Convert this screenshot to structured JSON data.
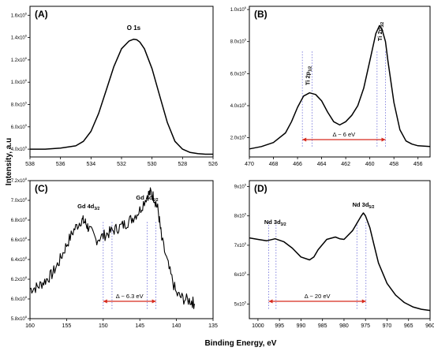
{
  "figure": {
    "ylabel": "Intensity, a.u",
    "xlabel": "Binding Energy, eV"
  },
  "chart_data": [
    {
      "type": "line",
      "panel_label": "(A)",
      "peak_label": "O 1s",
      "annotations": [],
      "xlim": [
        538,
        526
      ],
      "ylim": [
        330000,
        1680000
      ],
      "xticks": [
        538,
        536,
        534,
        532,
        530,
        528,
        526
      ],
      "yticks": [
        400000,
        600000,
        800000,
        1000000,
        1200000,
        1400000,
        1600000
      ],
      "ytick_labels": [
        {
          "m": "4.0x10",
          "e": "5"
        },
        {
          "m": "6.0x10",
          "e": "5"
        },
        {
          "m": "8.0x10",
          "e": "5"
        },
        {
          "m": "1.0x10",
          "e": "6"
        },
        {
          "m": "1.2x10",
          "e": "6"
        },
        {
          "m": "1.4x10",
          "e": "6"
        },
        {
          "m": "1.6x10",
          "e": "6"
        }
      ],
      "series": [
        {
          "x": [
            538.0,
            537.0,
            536.0,
            535.0,
            534.5,
            534.0,
            533.5,
            533.0,
            532.5,
            532.0,
            531.5,
            531.2,
            531.0,
            530.8,
            530.5,
            530.0,
            529.5,
            529.0,
            528.5,
            528.0,
            527.5,
            527.0,
            526.5,
            526.0
          ],
          "y": [
            400000,
            400000,
            410000,
            430000,
            470000,
            560000,
            720000,
            930000,
            1140000,
            1300000,
            1370000,
            1385000,
            1380000,
            1360000,
            1300000,
            1120000,
            880000,
            640000,
            470000,
            400000,
            370000,
            360000,
            355000,
            355000
          ]
        }
      ],
      "spans": []
    },
    {
      "type": "line",
      "panel_label": "(B)",
      "peak_label": "",
      "annotations": [
        {
          "main": "Ti 2p",
          "sub": "1/2",
          "x": 465.2
        },
        {
          "main": "Ti 2p",
          "sub": "3/2",
          "x": 459.2
        }
      ],
      "xlim": [
        470,
        455
      ],
      "ylim": [
        80000,
        1020000
      ],
      "xticks": [
        470,
        468,
        466,
        464,
        462,
        460,
        458,
        456
      ],
      "yticks": [
        200000,
        400000,
        600000,
        800000,
        1000000
      ],
      "ytick_labels": [
        {
          "m": "2.0x10",
          "e": "5"
        },
        {
          "m": "4.0x10",
          "e": "5"
        },
        {
          "m": "6.0x10",
          "e": "5"
        },
        {
          "m": "8.0x10",
          "e": "5"
        },
        {
          "m": "1.0x10",
          "e": "6"
        }
      ],
      "series": [
        {
          "x": [
            470.0,
            469.0,
            468.0,
            467.0,
            466.5,
            466.0,
            465.5,
            465.0,
            464.5,
            464.0,
            463.5,
            463.0,
            462.5,
            462.0,
            461.5,
            461.0,
            460.5,
            460.0,
            459.5,
            459.2,
            459.0,
            458.7,
            458.5,
            458.0,
            457.5,
            457.0,
            456.5,
            456.0,
            455.0
          ],
          "y": [
            130000,
            145000,
            170000,
            230000,
            300000,
            390000,
            460000,
            480000,
            470000,
            430000,
            360000,
            300000,
            280000,
            300000,
            340000,
            400000,
            510000,
            680000,
            850000,
            900000,
            880000,
            800000,
            680000,
            420000,
            250000,
            180000,
            160000,
            150000,
            145000
          ]
        }
      ],
      "spans": [
        {
          "from": 465.6,
          "to": 458.7,
          "label": "Δ ~ 6 eV",
          "lines": [
            465.6,
            464.8,
            459.4,
            458.7
          ]
        }
      ]
    },
    {
      "type": "line",
      "panel_label": "(C)",
      "peak_label": "",
      "annotations": [
        {
          "main": "Gd 4d",
          "sub": "3/2",
          "x": 152.0
        },
        {
          "main": "Gd 4d",
          "sub": "5/2",
          "x": 144.0
        }
      ],
      "xlim": [
        160,
        135
      ],
      "ylim": [
        580000000.0,
        720000000.0
      ],
      "xticks": [
        160,
        155,
        150,
        145,
        140,
        135
      ],
      "yticks": [
        580000000.0,
        600000000.0,
        620000000.0,
        640000000.0,
        660000000.0,
        680000000.0,
        700000000.0,
        720000000.0
      ],
      "ytick_labels": [
        {
          "m": "5.8x10",
          "e": "8"
        },
        {
          "m": "6.0x10",
          "e": "8"
        },
        {
          "m": "6.2x10",
          "e": "8"
        },
        {
          "m": "6.4x10",
          "e": "8"
        },
        {
          "m": "6.6x10",
          "e": "8"
        },
        {
          "m": "6.8x10",
          "e": "8"
        },
        {
          "m": "7.0x10",
          "e": "8"
        },
        {
          "m": "7.2x10",
          "e": "8"
        }
      ],
      "series": [
        {
          "x": [
            160.0,
            159.0,
            158.0,
            157.0,
            156.0,
            155.0,
            154.0,
            153.0,
            152.5,
            152.0,
            151.0,
            150.0,
            149.0,
            148.0,
            147.0,
            146.0,
            145.0,
            144.0,
            143.5,
            143.0,
            142.5,
            142.0,
            141.0,
            140.0,
            139.0,
            138.0,
            137.5
          ],
          "y": [
            610000000.0,
            612000000.0,
            618000000.0,
            625000000.0,
            638000000.0,
            655000000.0,
            670000000.0,
            680000000.0,
            678000000.0,
            672000000.0,
            660000000.0,
            664000000.0,
            668000000.0,
            672000000.0,
            676000000.0,
            682000000.0,
            690000000.0,
            705000000.0,
            708000000.0,
            702000000.0,
            690000000.0,
            660000000.0,
            630000000.0,
            605000000.0,
            600000000.0,
            598000000.0,
            595000000.0
          ]
        }
      ],
      "spans": [
        {
          "from": 150.0,
          "to": 142.8,
          "label": "Δ ~ 6.3 eV",
          "lines": [
            150.0,
            148.8,
            144.0,
            142.8
          ]
        }
      ]
    },
    {
      "type": "line",
      "panel_label": "(D)",
      "peak_label": "",
      "annotations": [
        {
          "main": "Nd 3d",
          "sub": "3/2",
          "x": 996.0
        },
        {
          "main": "Nd 3d",
          "sub": "5/2",
          "x": 975.5
        }
      ],
      "xlim": [
        1002,
        960
      ],
      "ylim": [
        450000.0,
        920000.0
      ],
      "xticks": [
        1000,
        995,
        990,
        985,
        980,
        975,
        970,
        965,
        960
      ],
      "yticks": [
        500000.0,
        600000.0,
        700000.0,
        800000.0,
        900000.0
      ],
      "ytick_labels": [
        {
          "m": "5x10",
          "e": "5"
        },
        {
          "m": "6x10",
          "e": "5"
        },
        {
          "m": "7x10",
          "e": "5"
        },
        {
          "m": "8x10",
          "e": "5"
        },
        {
          "m": "9x10",
          "e": "5"
        }
      ],
      "series": [
        {
          "x": [
            1002,
            1000,
            998,
            996,
            994,
            992,
            990,
            988,
            987,
            986,
            984,
            982,
            981,
            980,
            978,
            976,
            975.5,
            975,
            974,
            973,
            972,
            970,
            968,
            966,
            964,
            962,
            960
          ],
          "y": [
            725000,
            720000,
            715000,
            722000,
            712000,
            690000,
            660000,
            650000,
            660000,
            685000,
            720000,
            728000,
            722000,
            720000,
            750000,
            800000,
            810000,
            800000,
            760000,
            700000,
            640000,
            570000,
            530000,
            505000,
            490000,
            482000,
            478000
          ]
        }
      ],
      "spans": [
        {
          "from": 997.5,
          "to": 974.9,
          "label": "Δ ~ 20 eV",
          "lines": [
            997.5,
            995.8,
            977.0,
            974.9
          ]
        }
      ]
    }
  ]
}
